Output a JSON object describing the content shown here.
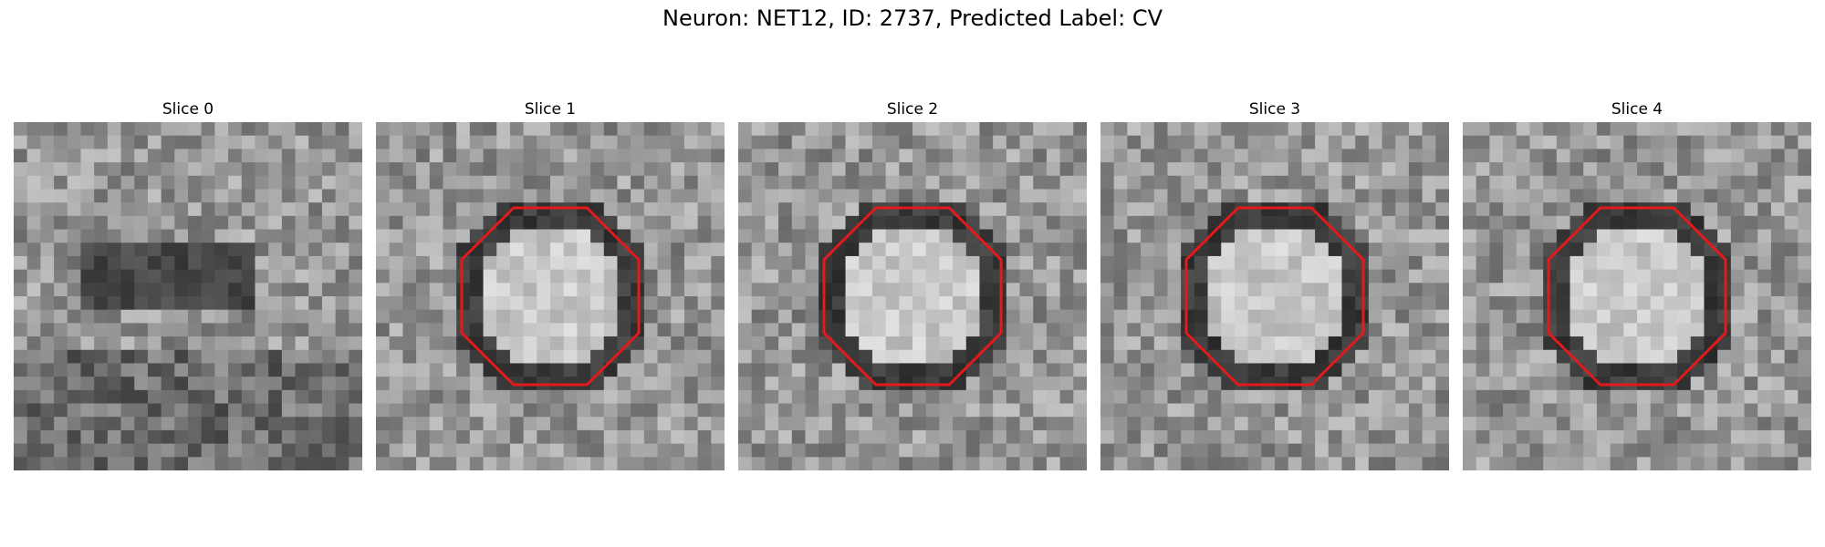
{
  "title": "Neuron: NET12, ID: 2737, Predicted Label: CV",
  "panels": [
    {
      "title": "Slice 0",
      "roi": false
    },
    {
      "title": "Slice 1",
      "roi": true
    },
    {
      "title": "Slice 2",
      "roi": true
    },
    {
      "title": "Slice 3",
      "roi": true
    },
    {
      "title": "Slice 4",
      "roi": true
    }
  ],
  "roi_color": "#e31a1c",
  "image_style": "grayscale micrograph"
}
